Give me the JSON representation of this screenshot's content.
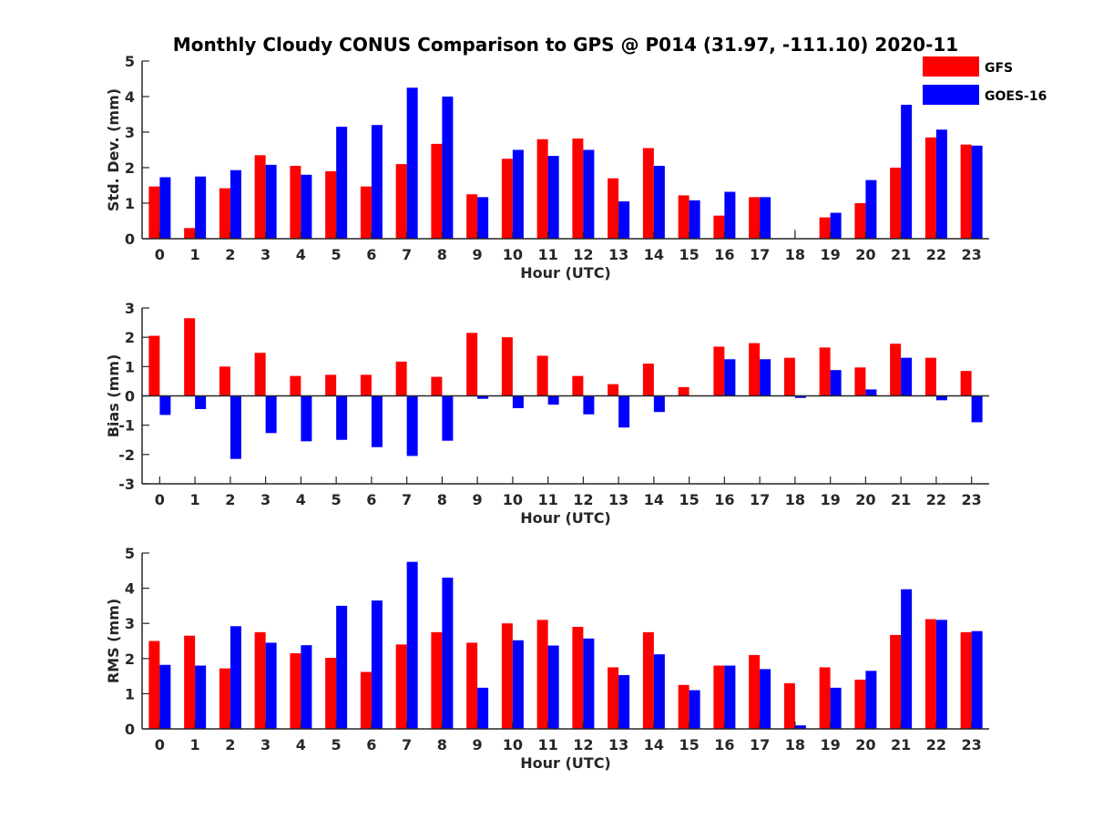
{
  "figure": {
    "title": "Monthly Cloudy CONUS Comparison to GPS @ P014 (31.97, -111.10) 2020-11"
  },
  "colors": {
    "GFS": "#ff0000",
    "GOES-16": "#0000ff",
    "axis": "#262626"
  },
  "legend": {
    "placement": "top-right",
    "entries": [
      "GFS",
      "GOES-16"
    ]
  },
  "chart_data": [
    {
      "type": "bar",
      "xlabel": "Hour (UTC)",
      "ylabel": "Std. Dev. (mm)",
      "ylim": [
        0,
        5
      ],
      "yticks": [
        0,
        1,
        2,
        3,
        4,
        5
      ],
      "categories": [
        "0",
        "1",
        "2",
        "3",
        "4",
        "5",
        "6",
        "7",
        "8",
        "9",
        "10",
        "11",
        "12",
        "13",
        "14",
        "15",
        "16",
        "17",
        "18",
        "19",
        "20",
        "21",
        "22",
        "23"
      ],
      "series": [
        {
          "name": "GFS",
          "values": [
            1.47,
            0.3,
            1.42,
            2.35,
            2.05,
            1.9,
            1.47,
            2.1,
            2.67,
            1.25,
            2.25,
            2.8,
            2.82,
            1.7,
            2.55,
            1.22,
            0.65,
            1.17,
            0.0,
            0.6,
            1.0,
            2.0,
            2.85,
            2.65
          ]
        },
        {
          "name": "GOES-16",
          "values": [
            1.73,
            1.75,
            1.93,
            2.08,
            1.8,
            3.15,
            3.2,
            4.25,
            4.0,
            1.17,
            2.5,
            2.33,
            2.5,
            1.05,
            2.05,
            1.08,
            1.32,
            1.17,
            0.0,
            0.73,
            1.65,
            3.77,
            3.07,
            2.62
          ]
        }
      ]
    },
    {
      "type": "bar",
      "xlabel": "Hour (UTC)",
      "ylabel": "Bias (mm)",
      "ylim": [
        -3,
        3
      ],
      "yticks": [
        -3,
        -2,
        -1,
        0,
        1,
        2,
        3
      ],
      "categories": [
        "0",
        "1",
        "2",
        "3",
        "4",
        "5",
        "6",
        "7",
        "8",
        "9",
        "10",
        "11",
        "12",
        "13",
        "14",
        "15",
        "16",
        "17",
        "18",
        "19",
        "20",
        "21",
        "22",
        "23"
      ],
      "series": [
        {
          "name": "GFS",
          "values": [
            2.05,
            2.65,
            1.0,
            1.47,
            0.68,
            0.72,
            0.72,
            1.17,
            0.65,
            2.15,
            2.0,
            1.37,
            0.68,
            0.4,
            1.1,
            0.3,
            1.68,
            1.8,
            1.3,
            1.65,
            0.97,
            1.78,
            1.3,
            0.85
          ]
        },
        {
          "name": "GOES-16",
          "values": [
            -0.65,
            -0.45,
            -2.15,
            -1.27,
            -1.55,
            -1.5,
            -1.75,
            -2.05,
            -1.53,
            -0.1,
            -0.42,
            -0.3,
            -0.63,
            -1.08,
            -0.55,
            0.0,
            1.25,
            1.25,
            -0.07,
            0.88,
            0.22,
            1.3,
            -0.15,
            -0.9
          ]
        }
      ]
    },
    {
      "type": "bar",
      "xlabel": "Hour (UTC)",
      "ylabel": "RMS (mm)",
      "ylim": [
        0,
        5
      ],
      "yticks": [
        0,
        1,
        2,
        3,
        4,
        5
      ],
      "categories": [
        "0",
        "1",
        "2",
        "3",
        "4",
        "5",
        "6",
        "7",
        "8",
        "9",
        "10",
        "11",
        "12",
        "13",
        "14",
        "15",
        "16",
        "17",
        "18",
        "19",
        "20",
        "21",
        "22",
        "23"
      ],
      "series": [
        {
          "name": "GFS",
          "values": [
            2.5,
            2.65,
            1.72,
            2.75,
            2.15,
            2.02,
            1.62,
            2.4,
            2.75,
            2.45,
            3.0,
            3.1,
            2.9,
            1.75,
            2.75,
            1.25,
            1.8,
            2.1,
            1.3,
            1.75,
            1.4,
            2.67,
            3.12,
            2.75
          ]
        },
        {
          "name": "GOES-16",
          "values": [
            1.82,
            1.8,
            2.92,
            2.45,
            2.38,
            3.5,
            3.65,
            4.75,
            4.3,
            1.17,
            2.52,
            2.37,
            2.57,
            1.53,
            2.12,
            1.1,
            1.8,
            1.7,
            0.1,
            1.17,
            1.65,
            3.97,
            3.1,
            2.78
          ]
        }
      ]
    }
  ]
}
